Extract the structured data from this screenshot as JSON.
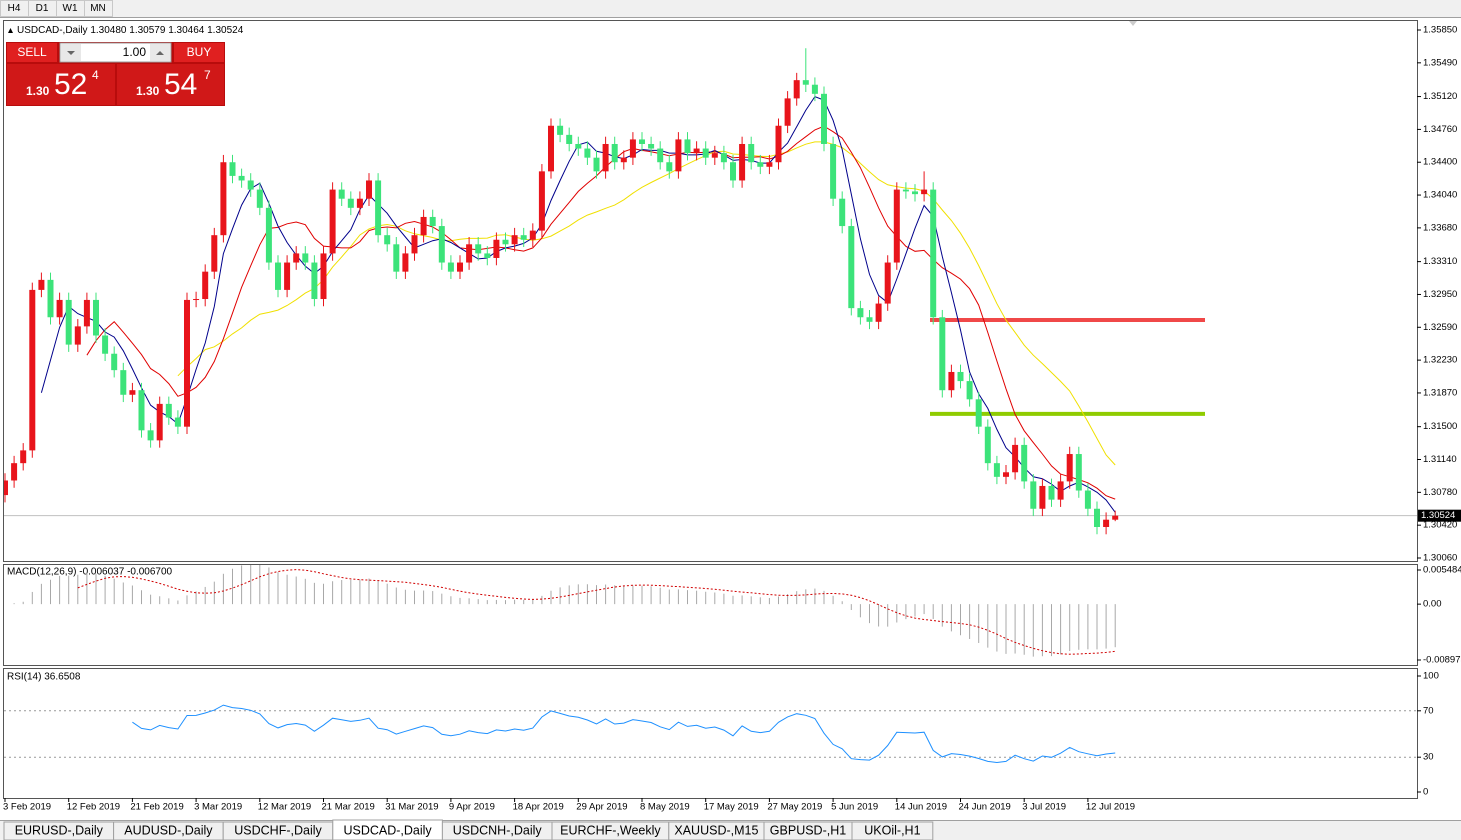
{
  "toolbar_tabs": [
    "H4",
    "D1",
    "W1",
    "MN"
  ],
  "trade_panel": {
    "sell": "SELL",
    "buy": "BUY",
    "lot": "1.00",
    "sell_price": [
      "1.30",
      "52",
      "4"
    ],
    "buy_price": [
      "1.30",
      "54",
      "7"
    ]
  },
  "symbol_tabs": [
    "EURUSD-,Daily",
    "AUDUSD-,Daily",
    "USDCHF-,Daily",
    "USDCAD-,Daily",
    "USDCNH-,Daily",
    "EURCHF-,Weekly",
    "XAUUSD-,M15",
    "GBPUSD-,H1",
    "UKOil-,H1"
  ],
  "active_tab": 3,
  "chart_data": {
    "type": "candlestick",
    "title": "USDCAD-,Daily",
    "quote": "1.30480 1.30579 1.30464 1.30524",
    "up_color": "#e8141b",
    "down_color": "#3ce37a",
    "ma_colors": [
      "#00008b",
      "#e00000",
      "#f0e000"
    ],
    "ylim": [
      1.3006,
      1.3585
    ],
    "yticks": [
      {
        "value": 1.3585,
        "label": "1.35850"
      },
      {
        "value": 1.3549,
        "label": "1.35490"
      },
      {
        "value": 1.3512,
        "label": "1.35120"
      },
      {
        "value": 1.3476,
        "label": "1.34760"
      },
      {
        "value": 1.344,
        "label": "1.34400"
      },
      {
        "value": 1.3404,
        "label": "1.34040"
      },
      {
        "value": 1.3368,
        "label": "1.33680"
      },
      {
        "value": 1.3331,
        "label": "1.33310"
      },
      {
        "value": 1.3295,
        "label": "1.32950"
      },
      {
        "value": 1.3259,
        "label": "1.32590"
      },
      {
        "value": 1.3223,
        "label": "1.32230"
      },
      {
        "value": 1.3187,
        "label": "1.31870"
      },
      {
        "value": 1.315,
        "label": "1.31500"
      },
      {
        "value": 1.3114,
        "label": "1.31140"
      },
      {
        "value": 1.3078,
        "label": "1.30780"
      },
      {
        "value": 1.3042,
        "label": "1.30420"
      },
      {
        "value": 1.3006,
        "label": "1.30060"
      }
    ],
    "current_price": {
      "value": 1.30524,
      "label": "1.30524"
    },
    "levels": [
      {
        "value": 1.3267,
        "color": "#f04848"
      },
      {
        "value": 1.3164,
        "color": "#8fcc00"
      }
    ],
    "date_labels": [
      "3 Feb 2019",
      "12 Feb 2019",
      "21 Feb 2019",
      "3 Mar 2019",
      "12 Mar 2019",
      "21 Mar 2019",
      "31 Mar 2019",
      "9 Apr 2019",
      "18 Apr 2019",
      "29 Apr 2019",
      "8 May 2019",
      "17 May 2019",
      "27 May 2019",
      "5 Jun 2019",
      "14 Jun 2019",
      "24 Jun 2019",
      "3 Jul 2019",
      "12 Jul 2019"
    ],
    "open": [
      1.3075,
      1.3091,
      1.311,
      1.3124,
      1.33,
      1.3311,
      1.327,
      1.3289,
      1.324,
      1.326,
      1.3289,
      1.325,
      1.323,
      1.3212,
      1.3185,
      1.319,
      1.3146,
      1.3135,
      1.3175,
      1.316,
      1.315,
      1.3289,
      1.329,
      1.332,
      1.336,
      1.344,
      1.3425,
      1.342,
      1.341,
      1.339,
      1.333,
      1.33,
      1.333,
      1.334,
      1.333,
      1.329,
      1.334,
      1.341,
      1.34,
      1.339,
      1.34,
      1.342,
      1.336,
      1.335,
      1.332,
      1.334,
      1.336,
      1.338,
      1.337,
      1.333,
      1.332,
      1.333,
      1.335,
      1.334,
      1.3335,
      1.3355,
      1.335,
      1.336,
      1.3355,
      1.3365,
      1.343,
      1.348,
      1.347,
      1.346,
      1.3455,
      1.3445,
      1.343,
      1.346,
      1.344,
      1.3445,
      1.3465,
      1.346,
      1.3455,
      1.344,
      1.343,
      1.3465,
      1.345,
      1.3455,
      1.3445,
      1.345,
      1.344,
      1.342,
      1.346,
      1.344,
      1.3435,
      1.344,
      1.348,
      1.351,
      1.353,
      1.3525,
      1.3515,
      1.346,
      1.34,
      1.337,
      1.328,
      1.327,
      1.3265,
      1.3285,
      1.333,
      1.341,
      1.3408,
      1.3405,
      1.341,
      1.327,
      1.319,
      1.321,
      1.32,
      1.318,
      1.315,
      1.311,
      1.3095,
      1.31,
      1.313,
      1.309,
      1.306,
      1.3085,
      1.307,
      1.309,
      1.312,
      1.308,
      1.306,
      1.304,
      1.3048
    ],
    "high": [
      1.3099,
      1.3118,
      1.3132,
      1.3308,
      1.3319,
      1.3319,
      1.3297,
      1.3297,
      1.3268,
      1.3297,
      1.3297,
      1.3258,
      1.3238,
      1.322,
      1.3198,
      1.3198,
      1.3154,
      1.3183,
      1.3183,
      1.3168,
      1.3297,
      1.3298,
      1.3328,
      1.3368,
      1.3448,
      1.3448,
      1.3433,
      1.3428,
      1.3418,
      1.3398,
      1.3338,
      1.3338,
      1.3348,
      1.3348,
      1.3338,
      1.3348,
      1.3418,
      1.3418,
      1.3408,
      1.3408,
      1.3428,
      1.3428,
      1.3368,
      1.3358,
      1.3348,
      1.3368,
      1.3388,
      1.3388,
      1.3378,
      1.3338,
      1.3338,
      1.3358,
      1.3358,
      1.3348,
      1.3363,
      1.3363,
      1.3368,
      1.3368,
      1.3373,
      1.3438,
      1.3488,
      1.3488,
      1.3478,
      1.3468,
      1.3463,
      1.3453,
      1.3468,
      1.3468,
      1.3453,
      1.3473,
      1.3473,
      1.3468,
      1.3463,
      1.3448,
      1.3473,
      1.3473,
      1.3463,
      1.3463,
      1.3458,
      1.3458,
      1.3448,
      1.3468,
      1.3468,
      1.3448,
      1.3448,
      1.3488,
      1.3518,
      1.3538,
      1.3565,
      1.3533,
      1.3523,
      1.3468,
      1.3408,
      1.3378,
      1.3288,
      1.3278,
      1.3293,
      1.3338,
      1.3418,
      1.3418,
      1.3416,
      1.343,
      1.3418,
      1.3278,
      1.3218,
      1.3218,
      1.3208,
      1.3188,
      1.3158,
      1.3118,
      1.3108,
      1.3138,
      1.3138,
      1.3098,
      1.3093,
      1.3093,
      1.3098,
      1.3128,
      1.3128,
      1.3088,
      1.3068,
      1.3056,
      1.30579
    ],
    "low": [
      1.3067,
      1.3083,
      1.3102,
      1.3116,
      1.3292,
      1.3262,
      1.3262,
      1.3232,
      1.3232,
      1.3252,
      1.3242,
      1.3222,
      1.3204,
      1.3177,
      1.3177,
      1.3138,
      1.3127,
      1.3127,
      1.3152,
      1.3142,
      1.3142,
      1.3281,
      1.3282,
      1.3312,
      1.3352,
      1.3417,
      1.3412,
      1.3402,
      1.3382,
      1.3322,
      1.3292,
      1.3292,
      1.3322,
      1.3322,
      1.3282,
      1.3282,
      1.3332,
      1.3392,
      1.3382,
      1.3382,
      1.3392,
      1.3352,
      1.3342,
      1.3312,
      1.3312,
      1.3332,
      1.3352,
      1.3362,
      1.3322,
      1.3312,
      1.3312,
      1.3322,
      1.3332,
      1.3327,
      1.3327,
      1.3342,
      1.3342,
      1.3347,
      1.3347,
      1.3357,
      1.3422,
      1.3462,
      1.3452,
      1.3447,
      1.3437,
      1.3422,
      1.3422,
      1.3432,
      1.3432,
      1.3437,
      1.3452,
      1.3447,
      1.3432,
      1.3422,
      1.3422,
      1.3442,
      1.3442,
      1.3437,
      1.3437,
      1.3432,
      1.3412,
      1.3412,
      1.3432,
      1.3427,
      1.3427,
      1.3432,
      1.3472,
      1.3502,
      1.3517,
      1.3507,
      1.3452,
      1.3392,
      1.3362,
      1.3272,
      1.3262,
      1.3257,
      1.3257,
      1.3277,
      1.3322,
      1.34,
      1.3397,
      1.3397,
      1.3262,
      1.3182,
      1.3182,
      1.3192,
      1.3172,
      1.3142,
      1.3102,
      1.3087,
      1.3087,
      1.3092,
      1.3082,
      1.3052,
      1.3052,
      1.3062,
      1.3062,
      1.3082,
      1.3072,
      1.3052,
      1.3032,
      1.3032,
      1.30464
    ],
    "close": [
      1.3091,
      1.311,
      1.3124,
      1.33,
      1.3311,
      1.327,
      1.3289,
      1.324,
      1.326,
      1.3289,
      1.325,
      1.323,
      1.3212,
      1.3185,
      1.319,
      1.3146,
      1.3135,
      1.3175,
      1.316,
      1.315,
      1.3289,
      1.329,
      1.332,
      1.336,
      1.344,
      1.3425,
      1.342,
      1.341,
      1.339,
      1.333,
      1.33,
      1.333,
      1.334,
      1.333,
      1.329,
      1.334,
      1.341,
      1.34,
      1.339,
      1.34,
      1.342,
      1.336,
      1.335,
      1.332,
      1.334,
      1.336,
      1.338,
      1.337,
      1.333,
      1.332,
      1.333,
      1.335,
      1.334,
      1.3335,
      1.3355,
      1.335,
      1.336,
      1.3355,
      1.3365,
      1.343,
      1.348,
      1.347,
      1.346,
      1.3455,
      1.3445,
      1.343,
      1.346,
      1.344,
      1.3445,
      1.3465,
      1.346,
      1.3455,
      1.344,
      1.343,
      1.3465,
      1.345,
      1.3455,
      1.3445,
      1.345,
      1.344,
      1.342,
      1.346,
      1.344,
      1.3435,
      1.344,
      1.348,
      1.351,
      1.353,
      1.3525,
      1.3515,
      1.346,
      1.34,
      1.337,
      1.328,
      1.327,
      1.3265,
      1.3285,
      1.333,
      1.341,
      1.3408,
      1.3405,
      1.341,
      1.327,
      1.319,
      1.321,
      1.32,
      1.318,
      1.315,
      1.311,
      1.3095,
      1.31,
      1.313,
      1.309,
      1.306,
      1.3085,
      1.307,
      1.309,
      1.312,
      1.308,
      1.306,
      1.304,
      1.3048,
      1.30524
    ],
    "macd": {
      "label": "MACD(12,26,9) -0.006037 -0.006700",
      "periods": [
        12,
        26,
        9
      ],
      "ylim": [
        -0.008973,
        0.005484
      ],
      "yticks": [
        0.005484,
        {
          "value": 0,
          "label": "0.00"
        },
        -0.008973
      ]
    },
    "rsi": {
      "label": "RSI(14) 36.6508",
      "period": 14,
      "ylim": [
        0,
        100
      ],
      "yticks": [
        100,
        70,
        30,
        0
      ],
      "levels": [
        70,
        30
      ]
    }
  }
}
